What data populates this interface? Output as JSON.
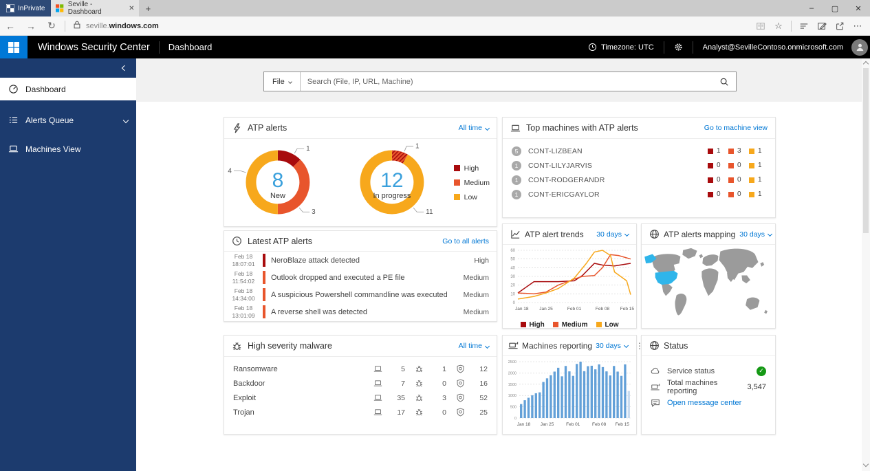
{
  "browser": {
    "inprivate_label": "InPrivate",
    "tab_title": "Seville - Dashboard",
    "url_host_prefix": "seville.",
    "url_host_bold": "windows.com"
  },
  "app_header": {
    "product": "Windows Security Center",
    "page": "Dashboard",
    "timezone": "Timezone: UTC",
    "account": "Analyst@SevilleContoso.onmicrosoft.com"
  },
  "sidebar": {
    "items": [
      {
        "label": "Dashboard",
        "icon": "gauge",
        "active": true
      },
      {
        "label": "Alerts Queue",
        "icon": "list",
        "active": false,
        "expandable": true
      },
      {
        "label": "Machines View",
        "icon": "laptop",
        "active": false
      }
    ]
  },
  "search": {
    "scope": "File",
    "placeholder": "Search (File, IP, URL, Machine)"
  },
  "cards": {
    "atp_alerts": {
      "title": "ATP alerts",
      "range": "All time",
      "legend": [
        "High",
        "Medium",
        "Low"
      ]
    },
    "latest_alerts": {
      "title": "Latest ATP alerts",
      "link": "Go to all alerts",
      "items": [
        {
          "date": "Feb 18",
          "time": "18:07:01",
          "title": "NeroBlaze attack detected",
          "severity": "High"
        },
        {
          "date": "Feb 18",
          "time": "11:54:02",
          "title": "Outlook dropped and executed a PE file",
          "severity": "Medium"
        },
        {
          "date": "Feb 18",
          "time": "14:34:00",
          "title": "A suspicious Powershell commandline was executed",
          "severity": "Medium"
        },
        {
          "date": "Feb 18",
          "time": "13:01:09",
          "title": "A reverse shell was detected",
          "severity": "Medium"
        }
      ]
    },
    "top_machines": {
      "title": "Top machines with ATP alerts",
      "link": "Go to machine view",
      "rows": [
        {
          "total": "5",
          "name": "CONT-LIZBEAN",
          "high": 1,
          "medium": 3,
          "low": 1
        },
        {
          "total": "1",
          "name": "CONT-LILYJARVIS",
          "high": 0,
          "medium": 0,
          "low": 1
        },
        {
          "total": "1",
          "name": "CONT-RODGERANDR",
          "high": 0,
          "medium": 0,
          "low": 1
        },
        {
          "total": "1",
          "name": "CONT-ERICGAYLOR",
          "high": 0,
          "medium": 0,
          "low": 1
        }
      ]
    },
    "trends": {
      "title": "ATP alert trends",
      "range": "30 days"
    },
    "mapping": {
      "title": "ATP alerts mapping",
      "range": "30 days",
      "highlighted_region": "United States"
    },
    "malware": {
      "title": "High severity malware",
      "range": "All time",
      "rows": [
        {
          "name": "Ransomware",
          "machines": "5",
          "active": "1",
          "blocked": "12"
        },
        {
          "name": "Backdoor",
          "machines": "7",
          "active": "0",
          "blocked": "16"
        },
        {
          "name": "Exploit",
          "machines": "35",
          "active": "3",
          "blocked": "52"
        },
        {
          "name": "Trojan",
          "machines": "17",
          "active": "0",
          "blocked": "25"
        }
      ]
    },
    "machines_reporting": {
      "title": "Machines reporting",
      "range": "30 days"
    },
    "status": {
      "title": "Status",
      "service_label": "Service status",
      "total_label": "Total machines reporting",
      "total_value": "3,547",
      "message_link": "Open message center"
    }
  },
  "chart_data": [
    {
      "type": "pie",
      "variant": "donut",
      "center_value": "8",
      "center_label": "New",
      "slices": [
        {
          "label": "High",
          "value": 1,
          "callout_angle": 30
        },
        {
          "label": "Medium",
          "value": 3,
          "callout_angle": 140
        },
        {
          "label": "Low",
          "value": 4,
          "callout_angle": 287
        }
      ]
    },
    {
      "type": "pie",
      "variant": "donut",
      "center_value": "12",
      "center_label": "In progress",
      "slices": [
        {
          "label": "High",
          "value": 0
        },
        {
          "label": "Medium",
          "value": 1,
          "hatched": true,
          "callout_angle": 22
        },
        {
          "label": "Low",
          "value": 11,
          "callout_angle": 140
        }
      ]
    },
    {
      "type": "line",
      "title": "ATP alert trends",
      "ylim": [
        0,
        60
      ],
      "ytick_step": 10,
      "x_ticks": [
        {
          "day": 0,
          "label": "Jan 18"
        },
        {
          "day": 7,
          "label": "Jan 25"
        },
        {
          "day": 14,
          "label": "Feb 01"
        },
        {
          "day": 21,
          "label": "Feb 08"
        },
        {
          "day": 28,
          "label": "Feb 15"
        }
      ],
      "x_max": 28,
      "series": [
        {
          "name": "High",
          "points": [
            [
              0,
              11
            ],
            [
              4,
              24
            ],
            [
              7,
              24
            ],
            [
              10,
              24
            ],
            [
              14,
              25
            ],
            [
              16,
              31
            ],
            [
              19,
              45
            ],
            [
              21,
              43
            ],
            [
              24,
              42
            ],
            [
              28,
              45
            ]
          ]
        },
        {
          "name": "Medium",
          "points": [
            [
              0,
              11
            ],
            [
              4,
              10
            ],
            [
              7,
              12
            ],
            [
              10,
              20
            ],
            [
              14,
              27
            ],
            [
              16,
              30
            ],
            [
              19,
              31
            ],
            [
              21,
              40
            ],
            [
              23,
              55
            ],
            [
              25,
              54
            ],
            [
              28,
              50
            ]
          ]
        },
        {
          "name": "Low",
          "points": [
            [
              0,
              4
            ],
            [
              4,
              7
            ],
            [
              7,
              11
            ],
            [
              10,
              16
            ],
            [
              14,
              28
            ],
            [
              17,
              45
            ],
            [
              19,
              58
            ],
            [
              21,
              60
            ],
            [
              23,
              54
            ],
            [
              24,
              35
            ],
            [
              27,
              25
            ],
            [
              28,
              9
            ]
          ]
        }
      ],
      "legend": [
        "High",
        "Medium",
        "Low"
      ]
    },
    {
      "type": "bar",
      "title": "Machines reporting",
      "ylim": [
        0,
        2500
      ],
      "ytick_step": 500,
      "x_ticks": [
        {
          "index": 0,
          "label": "Jan 18"
        },
        {
          "index": 7,
          "label": "Jan 25"
        },
        {
          "index": 14,
          "label": "Feb 01"
        },
        {
          "index": 21,
          "label": "Feb 08"
        },
        {
          "index": 28,
          "label": "Feb 15"
        }
      ],
      "values": [
        620,
        790,
        900,
        1010,
        1100,
        1140,
        1600,
        1760,
        1900,
        2060,
        2230,
        1850,
        2310,
        2070,
        1870,
        2400,
        2500,
        2080,
        2300,
        2320,
        2160,
        2380,
        2260,
        2070,
        1890,
        2310,
        2060,
        1870,
        2380
      ],
      "partial_last_value": 1200
    }
  ],
  "colors": {
    "accent": "#0078d7",
    "link": "#0077d4",
    "sidebar": "#1c3b6e",
    "severity": {
      "High": "#a80b0d",
      "Medium": "#e8552c",
      "Low": "#f7a81c"
    },
    "donut_center": "#3aa0dc",
    "bar": "#63a0d8",
    "bar_partial": "#c9dcf0",
    "map_land": "#9b9b9b",
    "map_highlight": "#2fb5ea",
    "status_ok": "#159915"
  }
}
